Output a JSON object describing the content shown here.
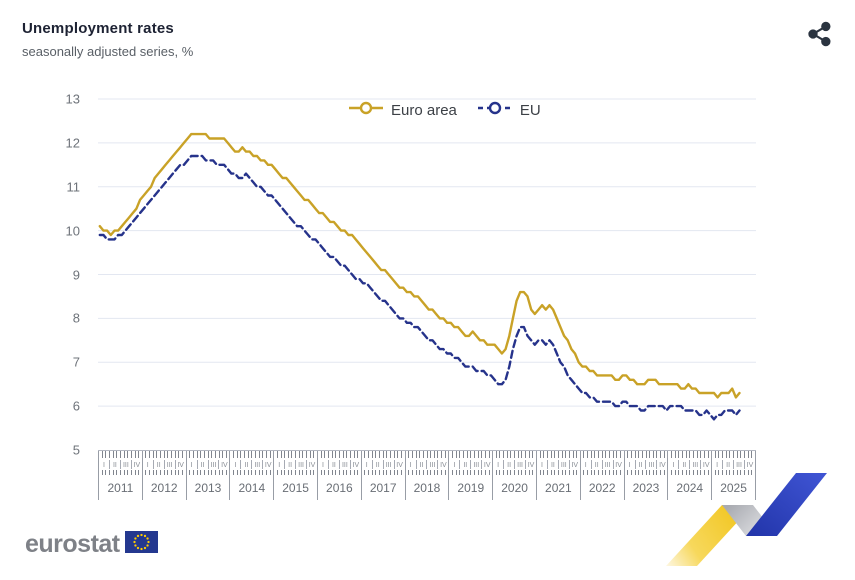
{
  "header": {
    "title": "Unemployment rates",
    "subtitle": "seasonally adjusted series, %"
  },
  "toolbar": {
    "share_icon": "share-icon"
  },
  "legend": [
    {
      "label": "Euro area",
      "color": "#c9a227",
      "style": "solid"
    },
    {
      "label": "EU",
      "color": "#26338b",
      "style": "dashed"
    }
  ],
  "y_axis": {
    "ticks": [
      13,
      12,
      11,
      10,
      9,
      8,
      7,
      6,
      5
    ]
  },
  "x_axis": {
    "years": [
      "2011",
      "2012",
      "2013",
      "2014",
      "2015",
      "2016",
      "2017",
      "2018",
      "2019",
      "2020",
      "2021",
      "2022",
      "2023",
      "2024",
      "2025"
    ],
    "quarters": [
      "I",
      "II",
      "III",
      "IV"
    ]
  },
  "footer": {
    "logo_text": "eurostat"
  },
  "colors": {
    "euro_area": "#c9a227",
    "eu": "#26338b",
    "grid": "#e3e7f1",
    "axis": "#b3b7c1",
    "title": "#1d2233",
    "subtitle": "#595f66",
    "share_icon": "#2b3440",
    "flag_blue": "#24388f",
    "flag_stars": "#ffcc00",
    "ribbon_yellow": "#f2c71b",
    "ribbon_gray": "#b9bbc0",
    "ribbon_blue": "#2b43c0"
  },
  "chart_data": {
    "type": "line",
    "title": "Unemployment rates",
    "subtitle": "seasonally adjusted series, %",
    "x": {
      "start": "2011-01",
      "end": "2025-08",
      "frequency": "monthly",
      "n_points": 176
    },
    "ylim": [
      5,
      13
    ],
    "grid": true,
    "legend_position": "top-center",
    "series": [
      {
        "name": "Euro area",
        "color": "#c9a227",
        "style": "solid",
        "values": [
          10.1,
          10.0,
          10.0,
          9.9,
          10.0,
          10.0,
          10.1,
          10.2,
          10.3,
          10.4,
          10.5,
          10.7,
          10.8,
          10.9,
          11.0,
          11.2,
          11.3,
          11.4,
          11.5,
          11.6,
          11.7,
          11.8,
          11.9,
          12.0,
          12.1,
          12.2,
          12.2,
          12.2,
          12.2,
          12.2,
          12.1,
          12.1,
          12.1,
          12.1,
          12.1,
          12.0,
          11.9,
          11.8,
          11.8,
          11.9,
          11.8,
          11.8,
          11.7,
          11.7,
          11.6,
          11.6,
          11.5,
          11.5,
          11.4,
          11.3,
          11.2,
          11.2,
          11.1,
          11.0,
          10.9,
          10.8,
          10.7,
          10.7,
          10.6,
          10.5,
          10.4,
          10.4,
          10.3,
          10.2,
          10.2,
          10.1,
          10.0,
          10.0,
          9.9,
          9.9,
          9.8,
          9.7,
          9.6,
          9.5,
          9.4,
          9.3,
          9.2,
          9.1,
          9.1,
          9.0,
          8.9,
          8.8,
          8.7,
          8.7,
          8.6,
          8.6,
          8.5,
          8.5,
          8.4,
          8.3,
          8.2,
          8.2,
          8.1,
          8.0,
          8.0,
          7.9,
          7.9,
          7.8,
          7.8,
          7.7,
          7.6,
          7.6,
          7.7,
          7.6,
          7.5,
          7.5,
          7.4,
          7.4,
          7.4,
          7.3,
          7.2,
          7.3,
          7.6,
          8.0,
          8.4,
          8.6,
          8.6,
          8.5,
          8.2,
          8.1,
          8.2,
          8.3,
          8.2,
          8.3,
          8.2,
          8.0,
          7.8,
          7.6,
          7.5,
          7.3,
          7.2,
          7.0,
          6.9,
          6.9,
          6.8,
          6.8,
          6.7,
          6.7,
          6.7,
          6.7,
          6.7,
          6.6,
          6.6,
          6.7,
          6.7,
          6.6,
          6.6,
          6.5,
          6.5,
          6.5,
          6.6,
          6.6,
          6.6,
          6.5,
          6.5,
          6.5,
          6.5,
          6.5,
          6.5,
          6.4,
          6.4,
          6.5,
          6.4,
          6.4,
          6.3,
          6.3,
          6.3,
          6.3,
          6.3,
          6.2,
          6.3,
          6.3,
          6.3,
          6.4,
          6.2,
          6.3
        ]
      },
      {
        "name": "EU",
        "color": "#26338b",
        "style": "dashed",
        "values": [
          9.9,
          9.9,
          9.8,
          9.8,
          9.8,
          9.9,
          9.9,
          10.0,
          10.1,
          10.2,
          10.3,
          10.4,
          10.5,
          10.6,
          10.7,
          10.8,
          10.9,
          11.0,
          11.1,
          11.2,
          11.3,
          11.4,
          11.5,
          11.5,
          11.6,
          11.7,
          11.7,
          11.7,
          11.7,
          11.6,
          11.6,
          11.6,
          11.5,
          11.5,
          11.5,
          11.4,
          11.3,
          11.3,
          11.2,
          11.2,
          11.3,
          11.2,
          11.1,
          11.0,
          11.0,
          10.9,
          10.8,
          10.8,
          10.7,
          10.6,
          10.5,
          10.4,
          10.3,
          10.2,
          10.1,
          10.1,
          10.0,
          9.9,
          9.8,
          9.8,
          9.7,
          9.6,
          9.5,
          9.4,
          9.4,
          9.3,
          9.2,
          9.2,
          9.1,
          9.0,
          8.9,
          8.9,
          8.8,
          8.8,
          8.7,
          8.6,
          8.5,
          8.4,
          8.4,
          8.3,
          8.2,
          8.1,
          8.0,
          8.0,
          7.9,
          7.9,
          7.8,
          7.8,
          7.7,
          7.6,
          7.5,
          7.5,
          7.4,
          7.3,
          7.3,
          7.2,
          7.2,
          7.1,
          7.1,
          7.0,
          6.9,
          6.9,
          6.9,
          6.8,
          6.8,
          6.8,
          6.7,
          6.7,
          6.6,
          6.5,
          6.5,
          6.6,
          6.9,
          7.3,
          7.6,
          7.8,
          7.8,
          7.6,
          7.5,
          7.4,
          7.5,
          7.5,
          7.4,
          7.5,
          7.4,
          7.2,
          7.0,
          6.9,
          6.7,
          6.6,
          6.5,
          6.4,
          6.3,
          6.3,
          6.2,
          6.2,
          6.1,
          6.1,
          6.1,
          6.1,
          6.1,
          6.0,
          6.0,
          6.1,
          6.1,
          6.0,
          6.0,
          6.0,
          5.9,
          5.9,
          6.0,
          6.0,
          6.0,
          6.0,
          6.0,
          5.9,
          6.0,
          6.0,
          6.0,
          6.0,
          5.9,
          5.9,
          5.9,
          5.9,
          5.8,
          5.8,
          5.9,
          5.8,
          5.7,
          5.8,
          5.8,
          5.9,
          5.9,
          5.9,
          5.8,
          5.9
        ]
      }
    ]
  }
}
